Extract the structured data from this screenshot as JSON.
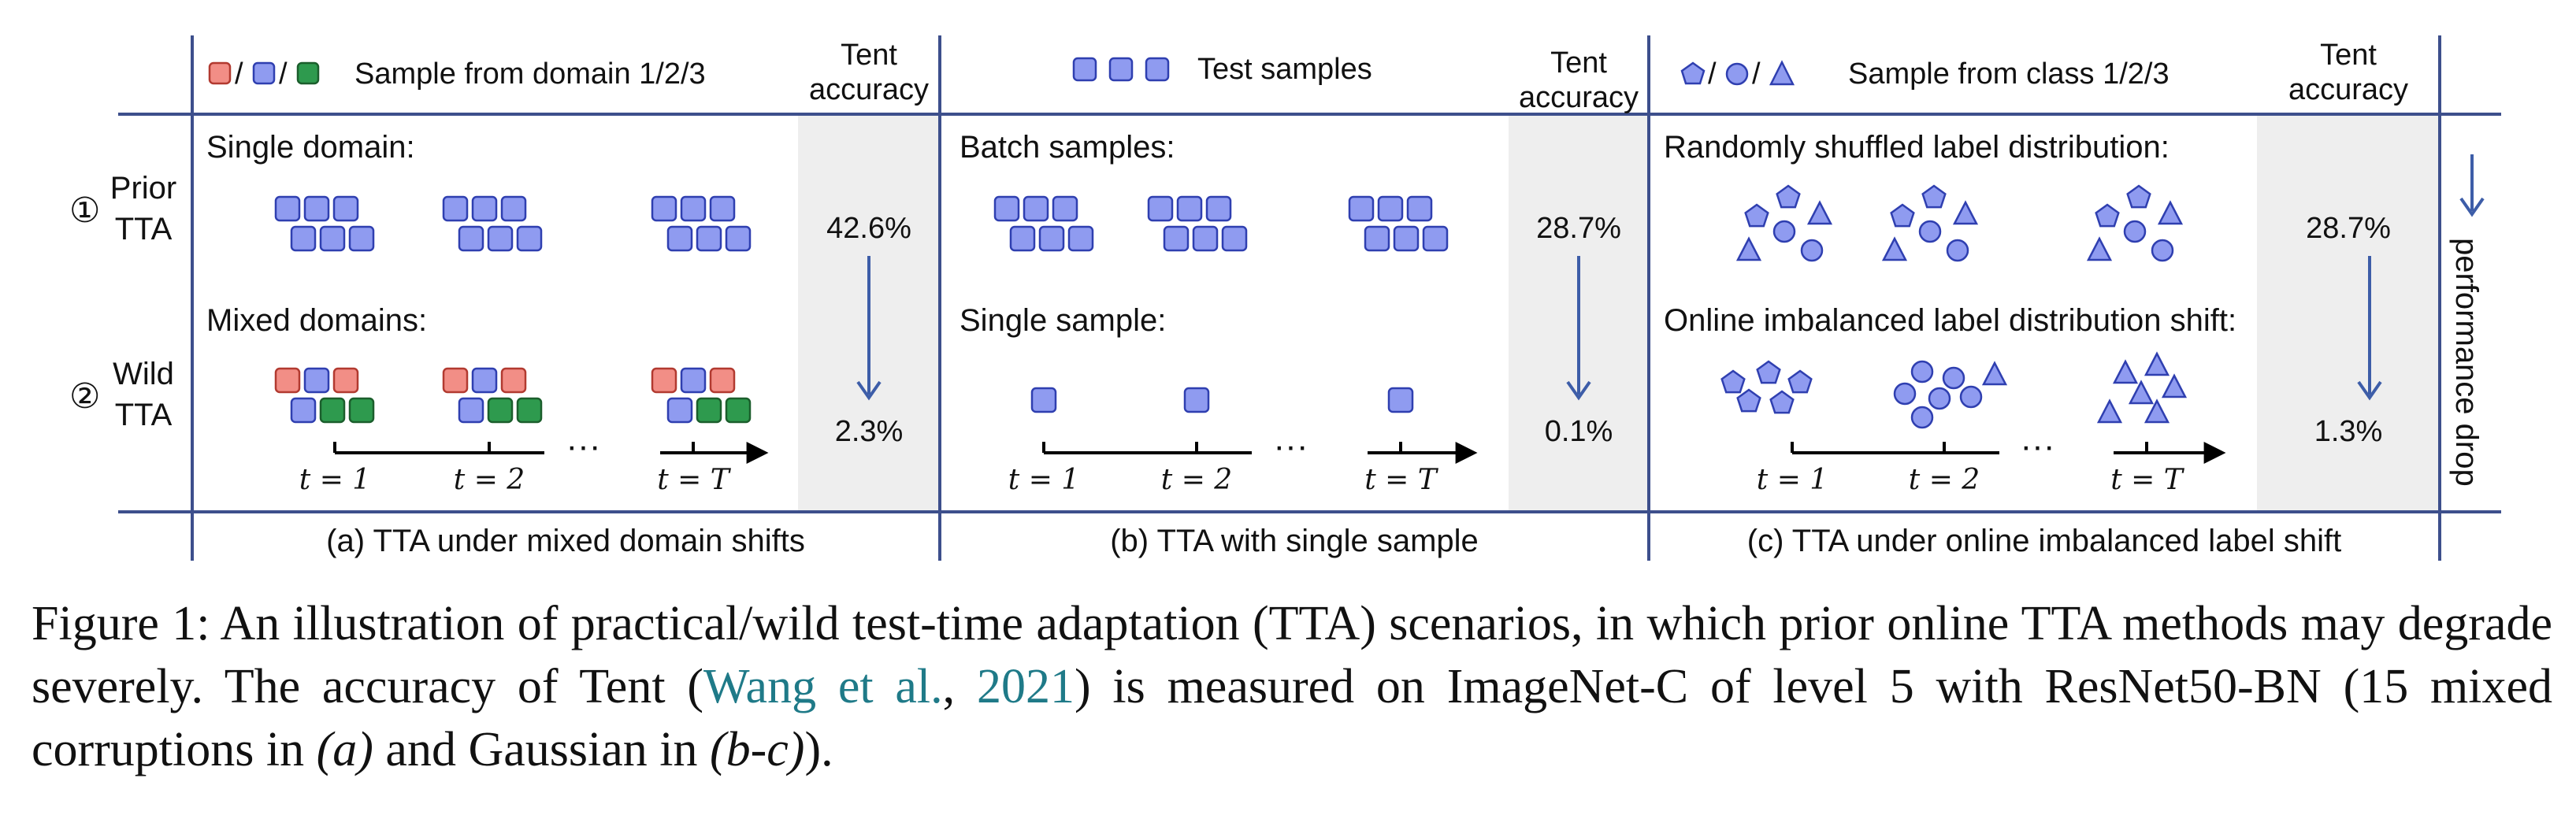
{
  "colors": {
    "blue_fill": "#8f9bf0",
    "blue_stroke": "#2f3fb0",
    "red_fill": "#f28e86",
    "red_stroke": "#b23a30",
    "green_fill": "#2e9a4e",
    "green_stroke": "#1b5e2c",
    "accuracy_bg": "#eeeeee",
    "arrow": "#3d5da8",
    "rule": "#3d4f8c",
    "link": "#1f7a88"
  },
  "rows": {
    "prior": {
      "circle": "①",
      "line1": "Prior",
      "line2": "TTA"
    },
    "wild": {
      "circle": "②",
      "line1": "Wild",
      "line2": "TTA"
    }
  },
  "panel_a": {
    "legend_text": "Sample from domain 1/2/3",
    "legend_sep": "/",
    "accuracy_header_1": "Tent",
    "accuracy_header_2": "accuracy",
    "top_label": "Single domain:",
    "bottom_label": "Mixed domains:",
    "prior_acc": "42.6%",
    "wild_acc": "2.3%",
    "times": [
      "t = 1",
      "t = 2",
      "t = T"
    ],
    "dots": "···",
    "caption": "(a) TTA under mixed domain shifts"
  },
  "panel_b": {
    "legend_text": "Test samples",
    "accuracy_header_1": "Tent",
    "accuracy_header_2": "accuracy",
    "top_label": "Batch samples:",
    "bottom_label": "Single sample:",
    "prior_acc": "28.7%",
    "wild_acc": "0.1%",
    "times": [
      "t = 1",
      "t = 2",
      "t = T"
    ],
    "dots": "···",
    "caption": "(b) TTA with single sample"
  },
  "panel_c": {
    "legend_text": "Sample from class 1/2/3",
    "legend_sep": "/",
    "accuracy_header_1": "Tent",
    "accuracy_header_2": "accuracy",
    "top_label": "Randomly shuffled label distribution:",
    "bottom_label": "Online imbalanced label distribution shift:",
    "prior_acc": "28.7%",
    "wild_acc": "1.3%",
    "times": [
      "t = 1",
      "t = 2",
      "t = T"
    ],
    "dots": "···",
    "caption": "(c) TTA under online imbalanced label shift"
  },
  "side_label": "performance drop",
  "figure_caption": {
    "prefix": "Figure 1: An illustration of practical/wild test-time adaptation (TTA) scenarios, in which prior online TTA methods may degrade severely. The accuracy of Tent (",
    "cite_author": "Wang et al.",
    "cite_sep": ", ",
    "cite_year": "2021",
    "middle": ") is measured on ImageNet-C of level 5 with ResNet50-BN (15 mixed corruptions in ",
    "ref_a": "(a)",
    "and": " and Gaussian in ",
    "ref_bc": "(b-c)",
    "suffix": ")."
  }
}
